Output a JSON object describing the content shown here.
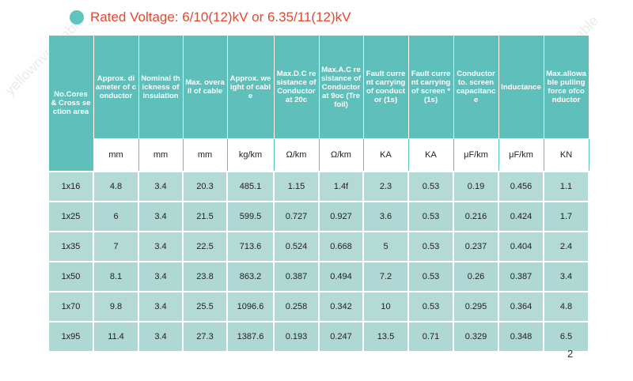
{
  "title": "Rated Voltage: 6/10(12)kV or 6.35/11(12)kV",
  "headers": [
    "No.Cores & Cross section area",
    "Approx. diameter of conductor",
    "Nominal thickness of insulation",
    "Max. overall of cable",
    "Approx. weight of cable",
    "Max.D.C resistance of Conductor at 20c",
    "Max.A.C resistance of Conductor at 9oc (Trefoil)",
    "Fault current carrying of conductor (1s)",
    "Fault current carrying of screen * (1s)",
    "Conductor to. screen capacitance",
    "Inductance",
    "Max.allowable pulling force ofconductor"
  ],
  "units": [
    "mm",
    "mm",
    "mm",
    "kg/km",
    "Ω/km",
    "Ω/km",
    "KA",
    "KA",
    "μF/km",
    "μF/km",
    "KN"
  ],
  "rows": [
    [
      "1x16",
      "4.8",
      "3.4",
      "20.3",
      "485.1",
      "1.15",
      "1.4f",
      "2.3",
      "0.53",
      "0.19",
      "0.456",
      "1.1"
    ],
    [
      "1x25",
      "6",
      "3.4",
      "21.5",
      "599.5",
      "0.727",
      "0.927",
      "3.6",
      "0.53",
      "0.216",
      "0.424",
      "1.7"
    ],
    [
      "1x35",
      "7",
      "3.4",
      "22.5",
      "713.6",
      "0.524",
      "0.668",
      "5",
      "0.53",
      "0.237",
      "0.404",
      "2.4"
    ],
    [
      "1x50",
      "8.1",
      "3.4",
      "23.8",
      "863.2",
      "0.387",
      "0.494",
      "7.2",
      "0.53",
      "0.26",
      "0.387",
      "3.4"
    ],
    [
      "1x70",
      "9.8",
      "3.4",
      "25.5",
      "1096.6",
      "0.258",
      "0.342",
      "10",
      "0.53",
      "0.295",
      "0.364",
      "4.8"
    ],
    [
      "1x95",
      "11.4",
      "3.4",
      "27.3",
      "1387.6",
      "0.193",
      "0.247",
      "13.5",
      "0.71",
      "0.329",
      "0.348",
      "6.5"
    ]
  ],
  "page_number": "2",
  "watermark": "yellowriver cable",
  "colors": {
    "header": "#5fbfba",
    "cell": "#afd7d3",
    "title": "#e8452c",
    "bullet": "#5fc3c0"
  }
}
